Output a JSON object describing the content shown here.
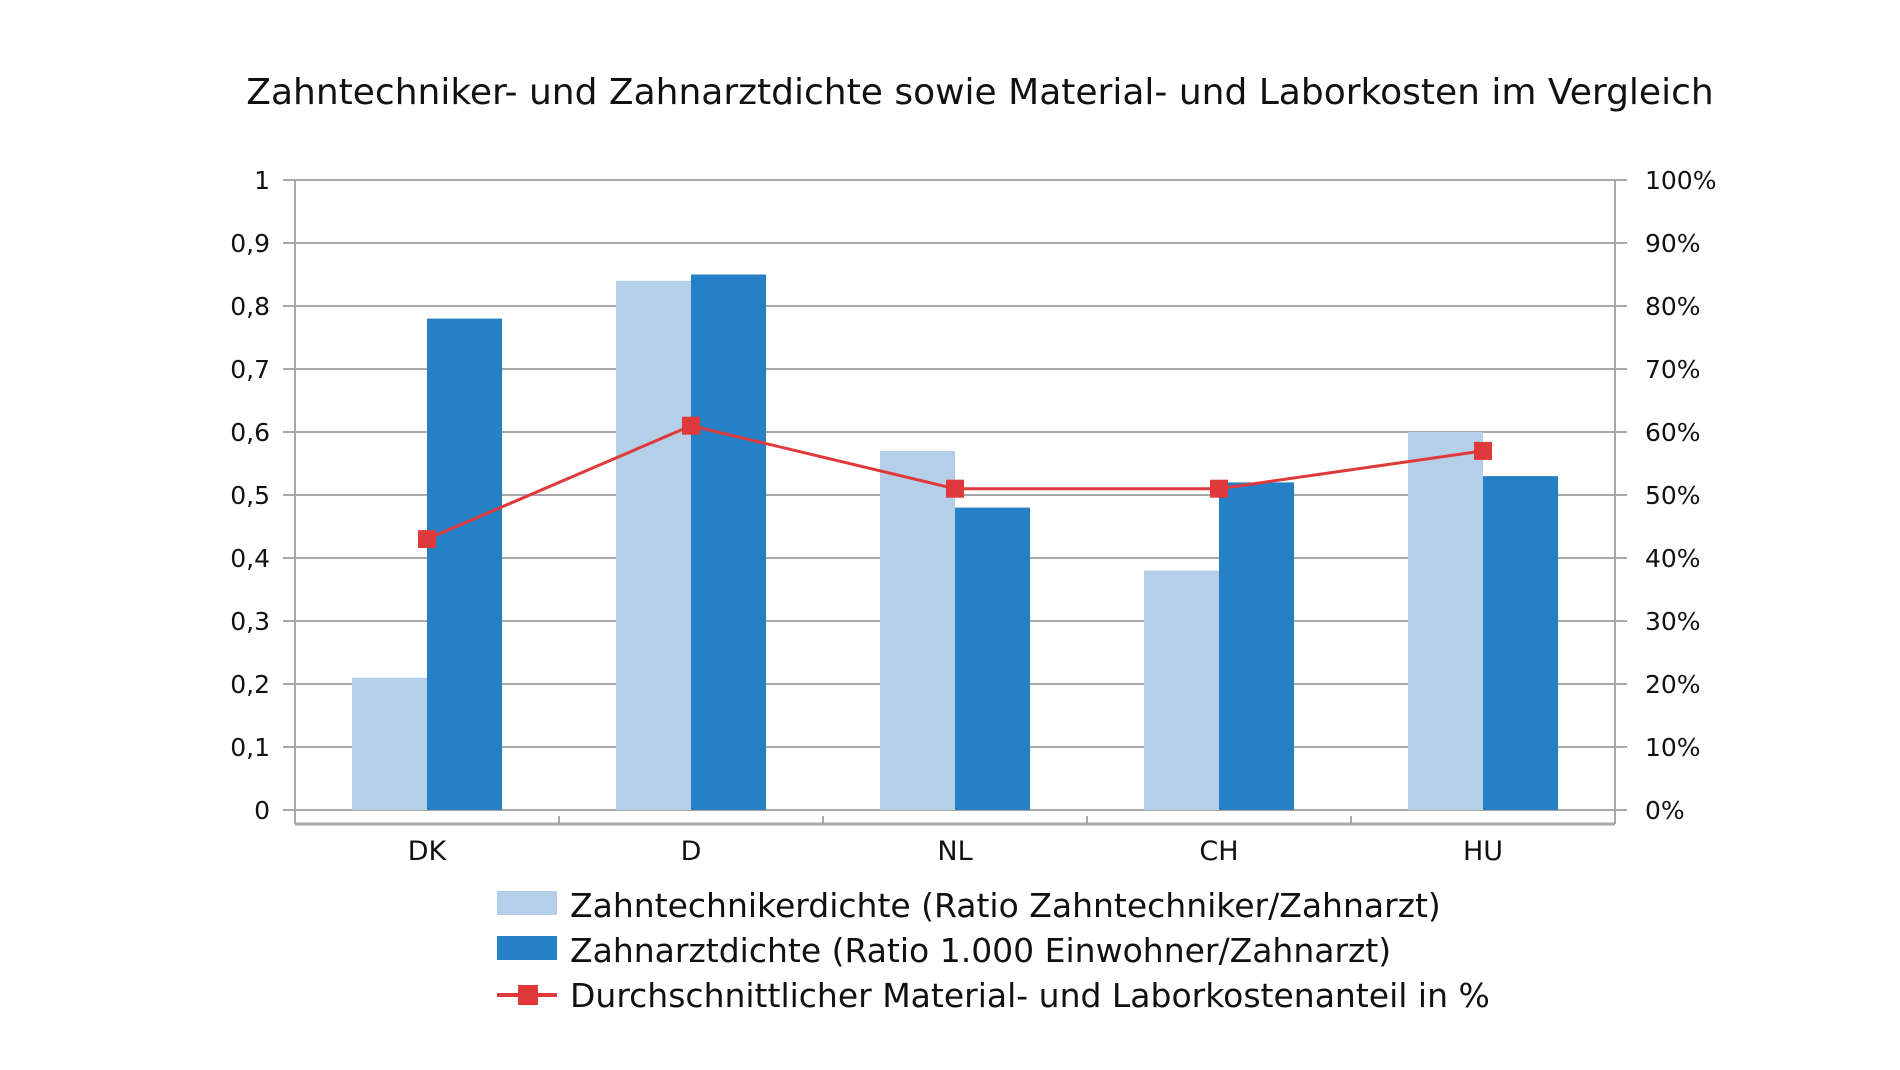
{
  "chart_data": {
    "type": "bar",
    "title": "Zahntechniker- und Zahnarztdichte sowie Material- und Laborkosten im Vergleich",
    "categories": [
      "DK",
      "D",
      "NL",
      "CH",
      "HU"
    ],
    "series": [
      {
        "name": "Zahntechnikerdichte (Ratio Zahntechniker/Zahnarzt)",
        "kind": "bar",
        "axis": "left",
        "color": "#b4cfe7",
        "values": [
          0.21,
          0.84,
          0.57,
          0.38,
          0.6
        ]
      },
      {
        "name": "Zahnarztdichte (Ratio 1.000 Einwohner/Zahnarzt)",
        "kind": "bar",
        "axis": "left",
        "color": "#2580c6",
        "values": [
          0.78,
          0.85,
          0.48,
          0.52,
          0.53
        ]
      },
      {
        "name": "Durchschnittlicher Material- und Laborkostenanteil in %",
        "kind": "line",
        "axis": "right",
        "color": "#e0393b",
        "values": [
          43,
          61,
          51,
          51,
          57
        ]
      }
    ],
    "yleft": {
      "lim": [
        0,
        1
      ],
      "ticks": [
        "0",
        "0,1",
        "0,2",
        "0,3",
        "0,4",
        "0,5",
        "0,6",
        "0,7",
        "0,8",
        "0,9",
        "1"
      ]
    },
    "yright": {
      "lim": [
        0,
        100
      ],
      "ticks": [
        "0%",
        "10%",
        "20%",
        "30%",
        "40%",
        "50%",
        "60%",
        "70%",
        "80%",
        "90%",
        "100%"
      ]
    },
    "grid": true,
    "legend_position": "bottom"
  }
}
